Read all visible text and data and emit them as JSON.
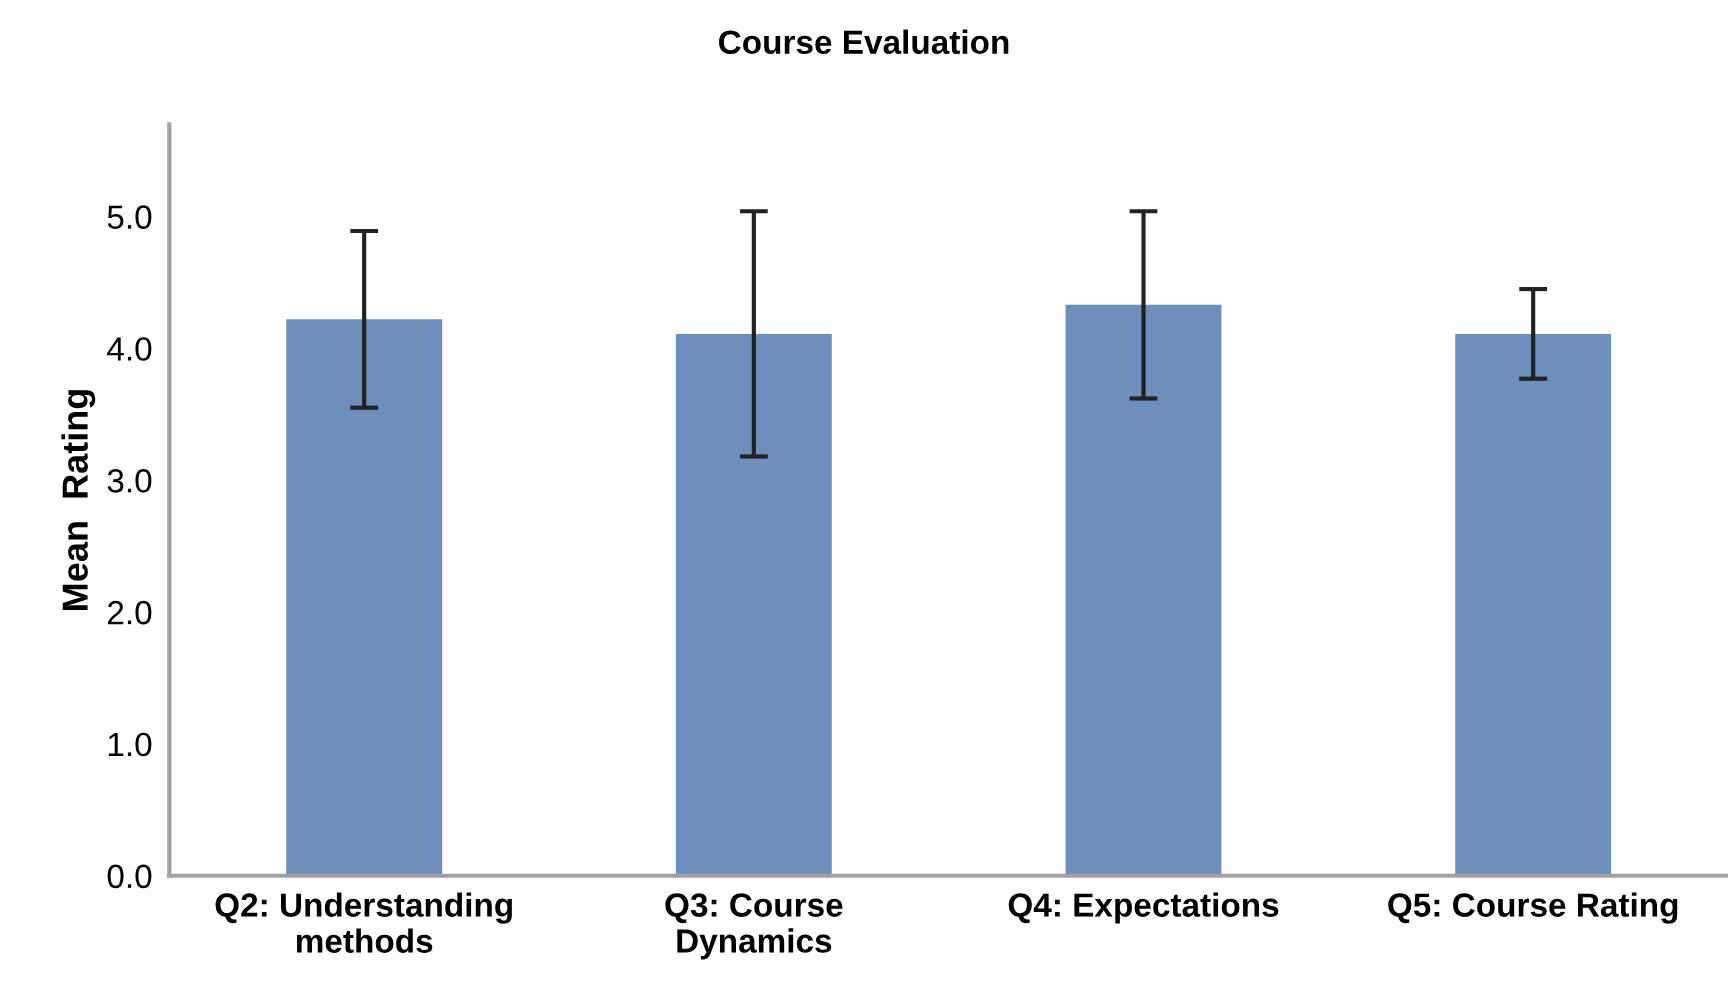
{
  "chart_data": {
    "type": "bar",
    "title": "Course Evaluation",
    "ylabel": "Mean  Rating",
    "categories": [
      "Q2: Understanding\nmethods",
      "Q3: Course\nDynamics",
      "Q4: Expectations",
      "Q5: Course Rating"
    ],
    "values": [
      4.22,
      4.11,
      4.33,
      4.11
    ],
    "errors": [
      0.67,
      0.93,
      0.71,
      0.34
    ],
    "color": "#6d8fbb",
    "ylim": [
      0,
      5.7
    ],
    "yticks": [
      {
        "value": 0,
        "label": "0.0"
      },
      {
        "value": 1,
        "label": "1.0"
      },
      {
        "value": 2,
        "label": "2.0"
      },
      {
        "value": 3,
        "label": "3.0"
      },
      {
        "value": 4,
        "label": "4.0"
      },
      {
        "value": 5,
        "label": "5.0"
      }
    ],
    "grid": false,
    "legend": false
  }
}
